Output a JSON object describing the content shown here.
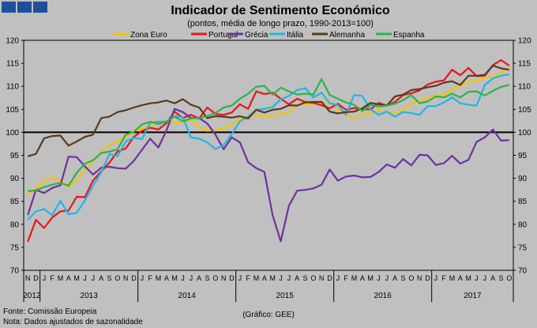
{
  "header_tiles": [
    "#1f4e9c",
    "#1f4e9c",
    "#1f4e9c"
  ],
  "chart_data": {
    "type": "line",
    "title": "Indicador de Sentimento Económico",
    "subtitle": "(pontos, média de longo prazo, 1990-2013=100)",
    "ylim": [
      70,
      120
    ],
    "yticks": [
      70,
      75,
      80,
      85,
      90,
      95,
      100,
      105,
      110,
      115,
      120
    ],
    "reference_line": 100,
    "months": [
      "N",
      "D",
      "J",
      "F",
      "M",
      "A",
      "M",
      "J",
      "J",
      "A",
      "S",
      "O",
      "N",
      "D",
      "J",
      "F",
      "M",
      "A",
      "M",
      "J",
      "J",
      "A",
      "S",
      "O",
      "N",
      "D",
      "J",
      "F",
      "M",
      "A",
      "M",
      "J",
      "J",
      "A",
      "S",
      "O",
      "N",
      "D",
      "J",
      "F",
      "M",
      "A",
      "M",
      "J",
      "J",
      "A",
      "S",
      "O",
      "N",
      "D",
      "J",
      "F",
      "M",
      "A",
      "M",
      "J",
      "J",
      "A",
      "S",
      "O"
    ],
    "years": [
      "2012",
      "2013",
      "2014",
      "2015",
      "2016",
      "2017"
    ],
    "series": [
      {
        "name": "Zona Euro",
        "color": "#f5c400",
        "values": [
          86.5,
          87.8,
          89.5,
          90.0,
          89.5,
          88.2,
          89.5,
          91.8,
          93.8,
          95.6,
          97.2,
          98.1,
          99.0,
          100.3,
          100.8,
          101.3,
          102.0,
          102.3,
          102.1,
          102.3,
          102.6,
          101.1,
          100.3,
          100.6,
          100.9,
          101.6,
          102.9,
          103.6,
          103.8,
          103.4,
          103.6,
          104.0,
          104.4,
          105.8,
          106.1,
          106.2,
          106.3,
          106.5,
          105.0,
          103.8,
          103.1,
          103.9,
          104.1,
          104.8,
          104.3,
          104.2,
          104.8,
          106.3,
          106.8,
          107.5,
          108.0,
          108.1,
          109.4,
          110.2,
          111.0,
          111.2,
          111.9,
          112.0,
          113.0,
          114.1
        ]
      },
      {
        "name": "Portugal",
        "color": "#e8161b",
        "values": [
          76.2,
          81.0,
          79.2,
          81.5,
          82.8,
          83.0,
          86.0,
          85.9,
          89.5,
          91.5,
          93.4,
          95.8,
          96.5,
          99.0,
          100.3,
          101.0,
          100.6,
          102.0,
          104.5,
          103.1,
          103.8,
          103.0,
          105.4,
          104.0,
          103.8,
          104.3,
          106.1,
          105.1,
          108.9,
          108.3,
          108.6,
          107.3,
          106.1,
          107.3,
          106.6,
          106.4,
          105.9,
          105.2,
          106.2,
          104.9,
          105.3,
          105.0,
          105.0,
          106.4,
          105.8,
          106.6,
          108.1,
          108.5,
          109.1,
          110.4,
          111.0,
          111.3,
          113.6,
          112.4,
          114.0,
          112.2,
          112.3,
          114.6,
          115.7,
          114.5
        ]
      },
      {
        "name": "Grécia",
        "color": "#7030a0",
        "values": [
          82.0,
          87.5,
          86.8,
          87.9,
          88.5,
          94.7,
          94.6,
          92.6,
          90.8,
          92.3,
          92.5,
          92.2,
          92.1,
          93.8,
          96.2,
          98.6,
          96.7,
          100.4,
          105.1,
          104.4,
          103.1,
          103.1,
          101.9,
          99.5,
          96.3,
          98.9,
          97.8,
          93.5,
          92.2,
          91.4,
          82.0,
          76.3,
          84.0,
          87.3,
          87.5,
          87.8,
          88.6,
          91.9,
          89.5,
          90.4,
          90.6,
          90.2,
          90.3,
          91.4,
          93.0,
          92.3,
          94.2,
          92.8,
          95.1,
          95.0,
          92.9,
          93.3,
          94.9,
          93.2,
          94.0,
          97.9,
          98.9,
          100.6,
          98.2,
          98.3
        ]
      },
      {
        "name": "Itália",
        "color": "#21b5e8",
        "values": [
          81.0,
          82.8,
          83.3,
          82.0,
          85.1,
          82.2,
          82.5,
          85.2,
          88.4,
          91.3,
          95.3,
          94.8,
          98.0,
          98.8,
          98.5,
          102.1,
          102.3,
          102.3,
          103.5,
          103.3,
          98.9,
          98.6,
          97.8,
          96.4,
          97.2,
          99.6,
          102.4,
          103.4,
          104.9,
          105.1,
          105.5,
          107.2,
          107.9,
          109.2,
          109.6,
          107.6,
          108.6,
          106.3,
          105.9,
          103.8,
          108.1,
          107.9,
          105.0,
          103.8,
          104.5,
          103.4,
          104.4,
          104.2,
          103.8,
          105.7,
          105.7,
          106.5,
          107.6,
          106.3,
          106.0,
          105.8,
          110.3,
          111.7,
          112.3,
          112.6
        ]
      },
      {
        "name": "Alemanha",
        "color": "#5a3a1c",
        "values": [
          94.8,
          95.3,
          98.7,
          99.2,
          99.3,
          97.1,
          98.0,
          99.0,
          99.5,
          103.1,
          103.4,
          104.4,
          104.8,
          105.4,
          105.9,
          106.3,
          106.5,
          106.9,
          106.3,
          107.2,
          106.0,
          105.4,
          103.1,
          103.5,
          103.4,
          103.2,
          103.5,
          103.0,
          104.9,
          104.3,
          104.9,
          105.1,
          105.9,
          105.8,
          106.5,
          106.6,
          106.6,
          104.5,
          104.1,
          104.4,
          104.5,
          105.2,
          106.4,
          106.1,
          105.8,
          107.8,
          108.2,
          109.2,
          109.4,
          109.8,
          110.1,
          110.8,
          111.1,
          110.3,
          112.3,
          112.3,
          112.5,
          114.5,
          113.9,
          113.6
        ]
      },
      {
        "name": "Espanha",
        "color": "#2db34a",
        "values": [
          87.2,
          87.4,
          88.1,
          88.6,
          89.0,
          88.4,
          91.2,
          93.2,
          93.9,
          95.5,
          95.8,
          96.3,
          99.5,
          100.1,
          101.7,
          102.3,
          101.8,
          102.4,
          103.4,
          102.4,
          103.0,
          103.1,
          103.5,
          104.2,
          105.4,
          105.8,
          107.3,
          108.4,
          109.9,
          110.1,
          108.2,
          109.7,
          108.9,
          108.2,
          108.4,
          108.2,
          111.6,
          108.1,
          107.3,
          106.5,
          106.0,
          104.6,
          106.0,
          105.6,
          105.8,
          106.2,
          107.0,
          108.1,
          106.3,
          106.7,
          107.8,
          107.6,
          108.4,
          107.6,
          108.8,
          108.9,
          108.0,
          109.0,
          109.9,
          110.3
        ]
      }
    ]
  },
  "footer": {
    "source": "Fonte: Comissão Europeia",
    "note": "Nota: Dados ajustados de sazonalidade",
    "credit": "(Gráfico: GEE)"
  }
}
